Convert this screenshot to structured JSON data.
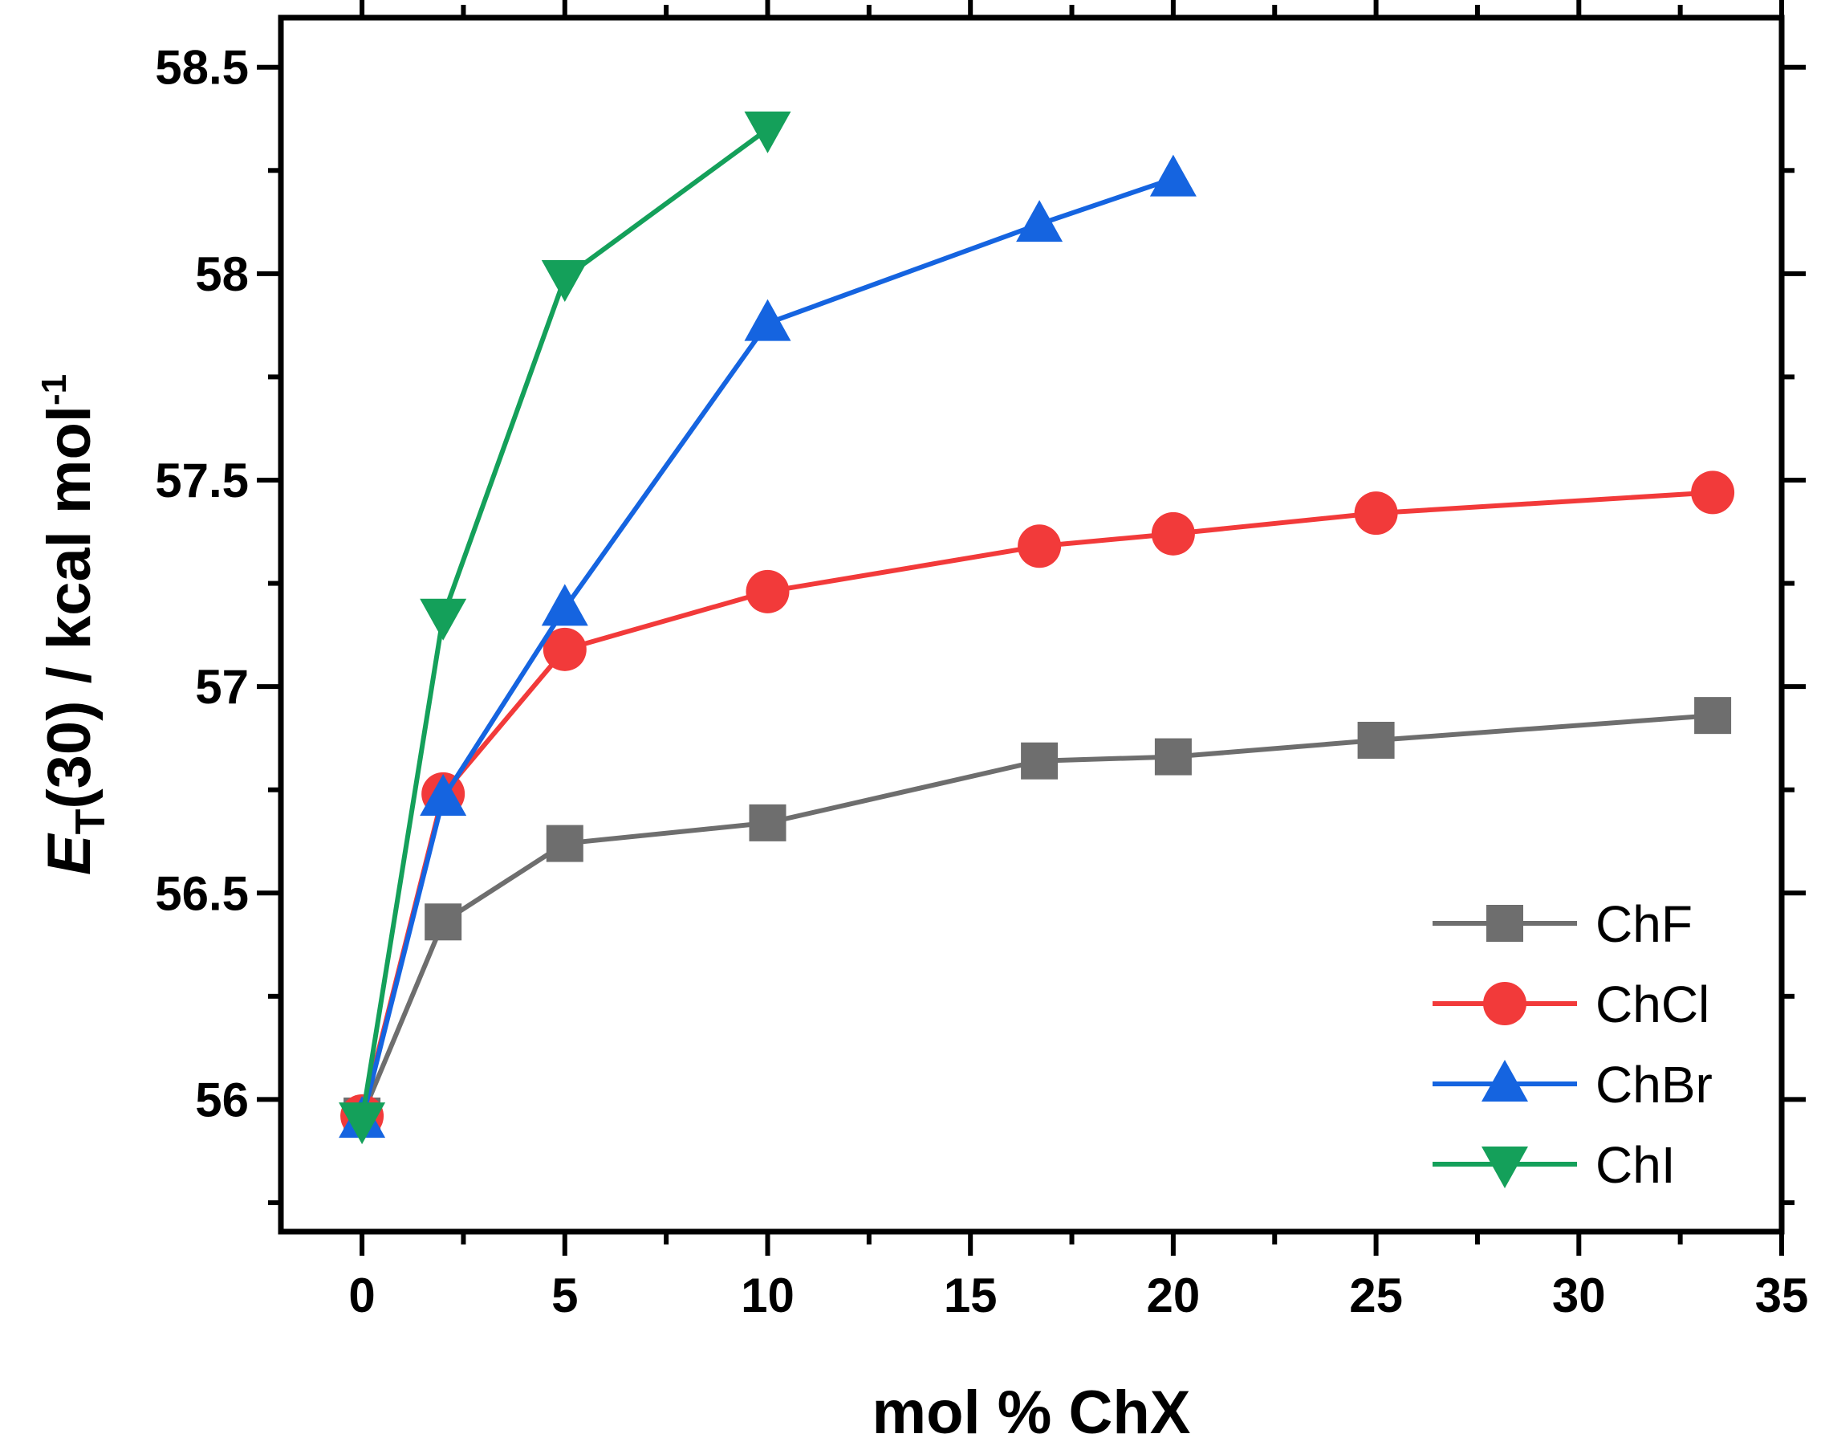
{
  "chart_data": {
    "type": "line",
    "title": "",
    "xlabel": "mol % ChX",
    "ylabel_parts": {
      "italic": "E",
      "sub": "T",
      "main": "(30) / kcal mol",
      "sup": "-1"
    },
    "xlim": [
      -2,
      35
    ],
    "ylim": [
      55.68,
      58.62
    ],
    "x_ticks": [
      0,
      5,
      10,
      15,
      20,
      25,
      30,
      35
    ],
    "x_tick_labels": [
      "0",
      "5",
      "10",
      "15",
      "20",
      "25",
      "30",
      "35"
    ],
    "y_ticks": [
      56,
      56.5,
      57,
      57.5,
      58,
      58.5
    ],
    "y_tick_labels": [
      "56",
      "56.5",
      "57",
      "57.5",
      "58",
      "58.5"
    ],
    "legend_position": "bottom-right",
    "series": [
      {
        "name": "ChF",
        "marker": "square",
        "color": "#6e6e6e",
        "x": [
          0,
          2,
          5,
          10,
          16.7,
          20,
          25,
          33.3
        ],
        "y": [
          55.96,
          56.43,
          56.62,
          56.67,
          56.82,
          56.83,
          56.87,
          56.93
        ]
      },
      {
        "name": "ChCl",
        "marker": "circle",
        "color": "#f23a3a",
        "x": [
          0,
          2,
          5,
          10,
          16.7,
          20,
          25,
          33.3
        ],
        "y": [
          55.96,
          56.74,
          57.09,
          57.23,
          57.34,
          57.37,
          57.42,
          57.47
        ]
      },
      {
        "name": "ChBr",
        "marker": "triangle-up",
        "color": "#1564e0",
        "x": [
          0,
          2,
          5,
          10,
          16.7,
          20
        ],
        "y": [
          55.95,
          56.73,
          57.19,
          57.88,
          58.12,
          58.23
        ]
      },
      {
        "name": "ChI",
        "marker": "triangle-down",
        "color": "#14a05a",
        "x": [
          0,
          2,
          5,
          10
        ],
        "y": [
          55.95,
          57.17,
          57.99,
          58.35
        ]
      }
    ]
  }
}
